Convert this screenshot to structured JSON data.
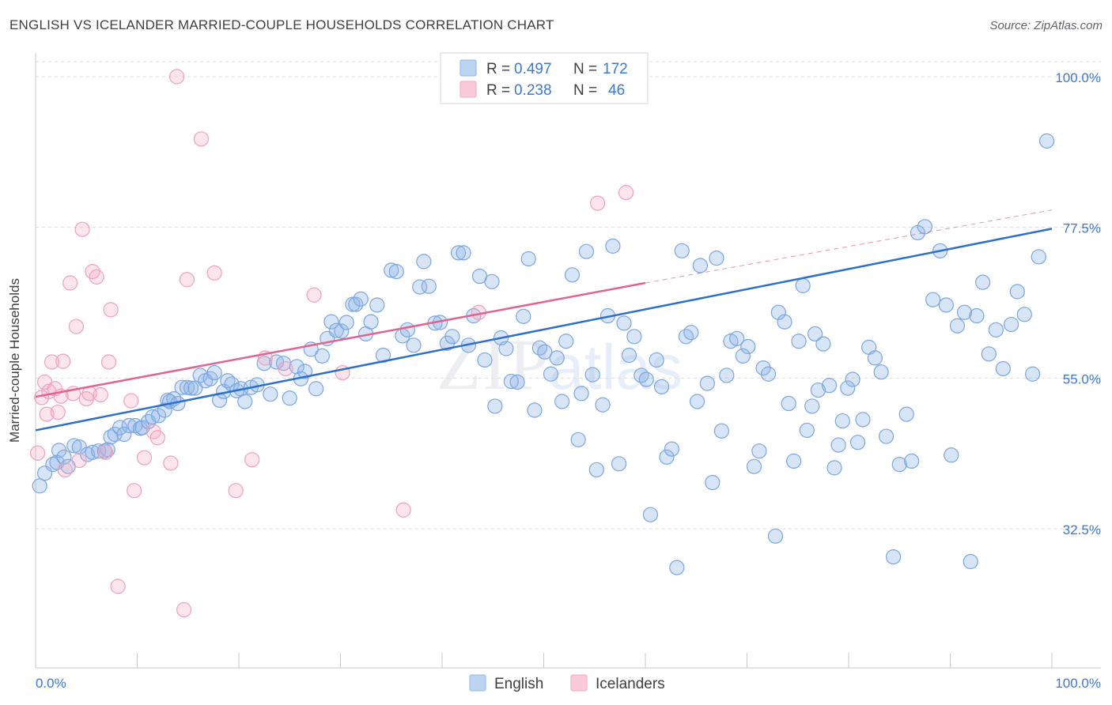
{
  "header": {
    "title": "ENGLISH VS ICELANDER MARRIED-COUPLE HOUSEHOLDS CORRELATION CHART",
    "source": "Source: ZipAtlas.com"
  },
  "colors": {
    "english": "#8fb4e8",
    "english_line": "#2e6fcc",
    "icelanders": "#f4a8c0",
    "icelanders_line": "#e0648e",
    "axis_text": "#3a78d4"
  },
  "legend": {
    "rows": [
      {
        "r_label": "R =",
        "r_value": "0.497",
        "n_label": "N =",
        "n_value": "172"
      },
      {
        "r_label": "R =",
        "r_value": "0.238",
        "n_label": "N =",
        "n_value": "46"
      }
    ]
  },
  "bottom_legend": {
    "english": "English",
    "icelanders": "Icelanders"
  },
  "watermark": {
    "zip": "ZIP",
    "atlas": "atlas"
  },
  "chart_data": {
    "type": "scatter",
    "title": "ENGLISH VS ICELANDER MARRIED-COUPLE HOUSEHOLDS CORRELATION CHART",
    "xlabel": "",
    "ylabel": "Married-couple Households",
    "xlim": [
      0,
      100
    ],
    "ylim": [
      18,
      100
    ],
    "x_tick_labels": {
      "left": "0.0%",
      "right": "100.0%"
    },
    "y_ticks": [
      {
        "value": 32.5,
        "label": "32.5%"
      },
      {
        "value": 55.0,
        "label": "55.0%"
      },
      {
        "value": 77.5,
        "label": "77.5%"
      },
      {
        "value": 100.0,
        "label": "100.0%"
      }
    ],
    "legend_placement": "top-center",
    "grid": true,
    "series": [
      {
        "name": "English",
        "R": 0.497,
        "N": 172,
        "trend": {
          "x": [
            0,
            100
          ],
          "y": [
            47.2,
            77.3
          ]
        },
        "points": [
          [
            0.4,
            38.9
          ],
          [
            0.9,
            40.8
          ],
          [
            1.7,
            42.1
          ],
          [
            2.1,
            42.4
          ],
          [
            2.3,
            44.2
          ],
          [
            2.8,
            43.2
          ],
          [
            3.2,
            41.8
          ],
          [
            3.8,
            44.9
          ],
          [
            4.3,
            44.7
          ],
          [
            5.1,
            43.6
          ],
          [
            5.6,
            43.9
          ],
          [
            6.2,
            44.1
          ],
          [
            6.8,
            44.1
          ],
          [
            7.1,
            44.3
          ],
          [
            7.4,
            46.2
          ],
          [
            7.8,
            46.6
          ],
          [
            8.3,
            47.6
          ],
          [
            8.7,
            46.6
          ],
          [
            9.2,
            47.9
          ],
          [
            9.8,
            47.9
          ],
          [
            10.3,
            47.5
          ],
          [
            10.5,
            47.6
          ],
          [
            11.1,
            48.5
          ],
          [
            11.5,
            49.2
          ],
          [
            12.1,
            49.4
          ],
          [
            12.7,
            50.2
          ],
          [
            13.0,
            51.7
          ],
          [
            13.2,
            51.5
          ],
          [
            13.6,
            51.9
          ],
          [
            14.0,
            51.2
          ],
          [
            14.4,
            53.6
          ],
          [
            14.9,
            53.6
          ],
          [
            15.3,
            53.5
          ],
          [
            15.7,
            53.5
          ],
          [
            16.2,
            55.4
          ],
          [
            16.7,
            54.6
          ],
          [
            17.2,
            54.9
          ],
          [
            17.6,
            55.8
          ],
          [
            18.1,
            51.7
          ],
          [
            18.5,
            53.0
          ],
          [
            18.9,
            54.6
          ],
          [
            19.3,
            54.1
          ],
          [
            19.8,
            53.1
          ],
          [
            20.2,
            53.4
          ],
          [
            20.6,
            51.5
          ],
          [
            21.2,
            53.6
          ],
          [
            21.8,
            54.0
          ],
          [
            22.5,
            57.2
          ],
          [
            23.1,
            52.6
          ],
          [
            23.7,
            57.4
          ],
          [
            24.4,
            57.2
          ],
          [
            25.0,
            52.0
          ],
          [
            25.7,
            56.7
          ],
          [
            26.1,
            54.9
          ],
          [
            26.5,
            56.0
          ],
          [
            27.1,
            59.3
          ],
          [
            27.6,
            53.4
          ],
          [
            28.2,
            58.3
          ],
          [
            28.7,
            60.9
          ],
          [
            29.1,
            63.4
          ],
          [
            29.6,
            62.1
          ],
          [
            30.1,
            62.0
          ],
          [
            30.6,
            63.3
          ],
          [
            31.2,
            66.0
          ],
          [
            31.5,
            66.0
          ],
          [
            32.0,
            66.8
          ],
          [
            32.5,
            61.6
          ],
          [
            33.0,
            63.4
          ],
          [
            33.6,
            65.9
          ],
          [
            34.2,
            58.4
          ],
          [
            35.0,
            71.1
          ],
          [
            35.5,
            70.9
          ],
          [
            36.1,
            61.3
          ],
          [
            36.6,
            62.2
          ],
          [
            37.2,
            59.9
          ],
          [
            37.8,
            68.6
          ],
          [
            38.2,
            72.4
          ],
          [
            38.7,
            68.7
          ],
          [
            39.3,
            63.2
          ],
          [
            39.8,
            63.3
          ],
          [
            40.5,
            60.2
          ],
          [
            41.0,
            61.2
          ],
          [
            41.6,
            73.7
          ],
          [
            42.1,
            73.7
          ],
          [
            42.6,
            59.9
          ],
          [
            43.1,
            64.3
          ],
          [
            43.7,
            70.2
          ],
          [
            44.2,
            57.7
          ],
          [
            44.9,
            69.4
          ],
          [
            45.2,
            50.8
          ],
          [
            45.8,
            61.0
          ],
          [
            46.3,
            59.4
          ],
          [
            46.8,
            54.5
          ],
          [
            47.4,
            54.4
          ],
          [
            48.0,
            64.2
          ],
          [
            48.5,
            72.8
          ],
          [
            49.1,
            50.2
          ],
          [
            49.6,
            59.5
          ],
          [
            50.1,
            58.9
          ],
          [
            50.7,
            55.6
          ],
          [
            51.3,
            58.0
          ],
          [
            51.8,
            51.5
          ],
          [
            52.2,
            60.5
          ],
          [
            52.8,
            70.4
          ],
          [
            53.4,
            45.8
          ],
          [
            53.7,
            52.7
          ],
          [
            54.2,
            73.9
          ],
          [
            54.8,
            55.5
          ],
          [
            55.2,
            41.3
          ],
          [
            55.8,
            51.0
          ],
          [
            56.3,
            64.3
          ],
          [
            56.8,
            74.7
          ],
          [
            57.4,
            42.2
          ],
          [
            57.9,
            63.2
          ],
          [
            58.4,
            58.4
          ],
          [
            58.9,
            61.2
          ],
          [
            59.6,
            55.4
          ],
          [
            60.1,
            54.8
          ],
          [
            60.5,
            34.6
          ],
          [
            61.1,
            57.7
          ],
          [
            61.6,
            53.7
          ],
          [
            62.1,
            43.2
          ],
          [
            62.6,
            44.4
          ],
          [
            63.1,
            26.7
          ],
          [
            63.6,
            74.0
          ],
          [
            64.0,
            61.2
          ],
          [
            64.5,
            61.8
          ],
          [
            65.1,
            51.5
          ],
          [
            65.4,
            71.8
          ],
          [
            66.1,
            54.2
          ],
          [
            66.6,
            39.4
          ],
          [
            67.0,
            72.9
          ],
          [
            67.5,
            47.1
          ],
          [
            68.0,
            55.4
          ],
          [
            68.4,
            60.5
          ],
          [
            69.0,
            60.9
          ],
          [
            69.6,
            58.3
          ],
          [
            70.1,
            59.7
          ],
          [
            70.7,
            41.8
          ],
          [
            71.2,
            44.1
          ],
          [
            71.6,
            56.5
          ],
          [
            72.1,
            55.6
          ],
          [
            72.8,
            31.4
          ],
          [
            73.1,
            64.8
          ],
          [
            73.7,
            63.4
          ],
          [
            74.1,
            51.2
          ],
          [
            74.6,
            42.6
          ],
          [
            75.1,
            60.5
          ],
          [
            75.5,
            68.8
          ],
          [
            75.9,
            47.2
          ],
          [
            76.4,
            50.8
          ],
          [
            76.7,
            61.6
          ],
          [
            77.0,
            53.2
          ],
          [
            77.5,
            60.1
          ],
          [
            78.1,
            53.9
          ],
          [
            78.6,
            41.6
          ],
          [
            79.0,
            45.0
          ],
          [
            79.4,
            48.6
          ],
          [
            79.9,
            53.5
          ],
          [
            80.4,
            54.8
          ],
          [
            80.9,
            45.4
          ],
          [
            81.4,
            48.8
          ],
          [
            82.0,
            59.6
          ],
          [
            82.6,
            58.0
          ],
          [
            83.2,
            55.9
          ],
          [
            83.7,
            46.3
          ],
          [
            84.4,
            28.3
          ],
          [
            85.0,
            42.1
          ],
          [
            85.7,
            49.6
          ],
          [
            86.2,
            42.6
          ],
          [
            86.8,
            76.7
          ],
          [
            87.5,
            77.6
          ],
          [
            88.3,
            66.7
          ],
          [
            89.0,
            74.0
          ],
          [
            89.6,
            65.9
          ],
          [
            90.1,
            43.5
          ],
          [
            90.7,
            62.8
          ],
          [
            91.4,
            64.8
          ],
          [
            92.0,
            27.6
          ],
          [
            92.6,
            64.3
          ],
          [
            93.2,
            69.3
          ],
          [
            93.8,
            58.6
          ],
          [
            94.5,
            62.2
          ],
          [
            95.2,
            56.4
          ],
          [
            96.0,
            63.0
          ],
          [
            96.6,
            67.9
          ],
          [
            97.3,
            64.5
          ],
          [
            98.1,
            55.6
          ],
          [
            98.7,
            73.1
          ],
          [
            99.5,
            90.4
          ]
        ]
      },
      {
        "name": "Icelanders",
        "R": 0.238,
        "N": 46,
        "trend": {
          "x": [
            0,
            60
          ],
          "y": [
            52.2,
            69.2
          ],
          "dash_to": {
            "x": 100,
            "y": 80.1
          }
        },
        "points": [
          [
            0.2,
            43.8
          ],
          [
            0.6,
            52.1
          ],
          [
            0.9,
            54.4
          ],
          [
            1.1,
            49.6
          ],
          [
            1.3,
            53.0
          ],
          [
            1.6,
            57.4
          ],
          [
            1.9,
            53.4
          ],
          [
            2.2,
            49.9
          ],
          [
            2.5,
            52.3
          ],
          [
            2.7,
            57.5
          ],
          [
            2.9,
            41.3
          ],
          [
            3.4,
            69.2
          ],
          [
            3.7,
            52.7
          ],
          [
            4.0,
            62.7
          ],
          [
            4.3,
            42.7
          ],
          [
            4.6,
            77.2
          ],
          [
            5.0,
            51.9
          ],
          [
            5.3,
            52.7
          ],
          [
            5.6,
            70.9
          ],
          [
            6.0,
            70.1
          ],
          [
            6.4,
            52.5
          ],
          [
            6.9,
            43.9
          ],
          [
            7.2,
            57.4
          ],
          [
            7.4,
            65.2
          ],
          [
            8.1,
            23.9
          ],
          [
            9.4,
            51.6
          ],
          [
            9.7,
            38.2
          ],
          [
            10.7,
            43.1
          ],
          [
            11.6,
            47.0
          ],
          [
            12.0,
            46.1
          ],
          [
            13.3,
            42.3
          ],
          [
            13.9,
            100.0
          ],
          [
            14.6,
            20.4
          ],
          [
            14.9,
            69.7
          ],
          [
            16.3,
            90.7
          ],
          [
            17.6,
            70.7
          ],
          [
            19.7,
            38.2
          ],
          [
            21.3,
            42.8
          ],
          [
            22.6,
            58.0
          ],
          [
            24.6,
            56.4
          ],
          [
            27.4,
            67.4
          ],
          [
            30.2,
            55.8
          ],
          [
            36.2,
            35.3
          ],
          [
            43.6,
            64.8
          ],
          [
            55.3,
            81.1
          ],
          [
            58.1,
            82.7
          ]
        ]
      }
    ]
  }
}
